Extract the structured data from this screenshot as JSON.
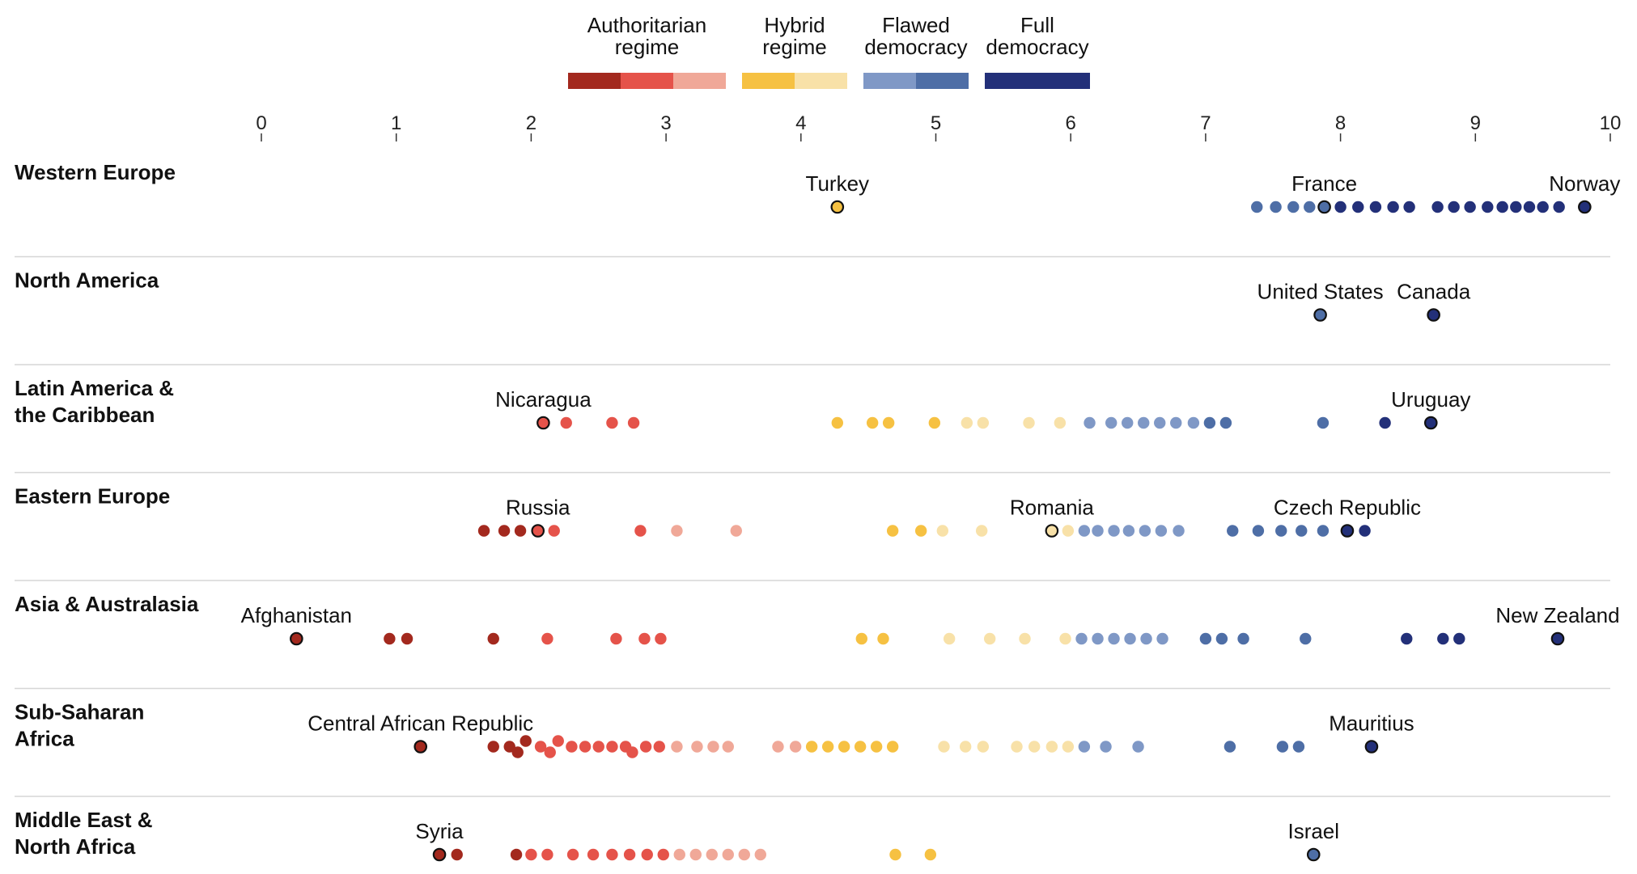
{
  "chart_data": {
    "type": "scatter",
    "title": "",
    "xlabel": "",
    "ylabel": "",
    "xlim": [
      0,
      10
    ],
    "x_ticks": [
      "0",
      "1",
      "2",
      "3",
      "4",
      "5",
      "6",
      "7",
      "8",
      "9",
      "10"
    ],
    "grid": false,
    "legend_position": "top",
    "legend": [
      {
        "label_lines": [
          "Authoritarian",
          "regime"
        ],
        "colors": [
          "#a3291e",
          "#e5534a",
          "#f0a898"
        ]
      },
      {
        "label_lines": [
          "Hybrid",
          "regime"
        ],
        "colors": [
          "#f6c142",
          "#f8e1a8"
        ]
      },
      {
        "label_lines": [
          "Flawed",
          "democracy"
        ],
        "colors": [
          "#7f98c6",
          "#4e6ea6"
        ]
      },
      {
        "label_lines": [
          "Full",
          "democracy"
        ],
        "colors": [
          "#233079"
        ]
      }
    ],
    "colors": {
      "authoritarian_dark": "#a3291e",
      "authoritarian_mid": "#e5534a",
      "authoritarian_light": "#f0a898",
      "hybrid_dark": "#f6c142",
      "hybrid_light": "#f8e1a8",
      "flawed_light": "#7f98c6",
      "flawed_dark": "#4e6ea6",
      "full": "#233079"
    },
    "series": [
      {
        "name": "Western Europe",
        "label_lines": [
          "Western Europe"
        ],
        "scores": [
          4.27,
          7.38,
          7.52,
          7.65,
          7.77,
          7.88,
          8.0,
          8.13,
          8.26,
          8.39,
          8.51,
          8.72,
          8.84,
          8.96,
          9.09,
          9.2,
          9.3,
          9.4,
          9.5,
          9.62,
          9.81
        ],
        "highlights": [
          {
            "country": "Turkey",
            "score": 4.27
          },
          {
            "country": "France",
            "score": 7.88
          },
          {
            "country": "Norway",
            "score": 9.81
          }
        ]
      },
      {
        "name": "North America",
        "label_lines": [
          "North America"
        ],
        "scores": [
          7.85,
          8.69
        ],
        "highlights": [
          {
            "country": "United States",
            "score": 7.85
          },
          {
            "country": "Canada",
            "score": 8.69
          }
        ]
      },
      {
        "name": "Latin America & the Caribbean",
        "label_lines": [
          "Latin America &",
          "the Caribbean"
        ],
        "scores": [
          2.09,
          2.26,
          2.6,
          2.76,
          4.27,
          4.53,
          4.65,
          4.99,
          5.23,
          5.35,
          5.69,
          5.92,
          6.14,
          6.3,
          6.42,
          6.54,
          6.66,
          6.78,
          6.91,
          7.03,
          7.15,
          7.87,
          8.33,
          8.67
        ],
        "highlights": [
          {
            "country": "Nicaragua",
            "score": 2.09
          },
          {
            "country": "Uruguay",
            "score": 8.67
          }
        ]
      },
      {
        "name": "Eastern Europe",
        "label_lines": [
          "Eastern Europe"
        ],
        "scores": [
          1.65,
          1.8,
          1.92,
          2.05,
          2.17,
          2.81,
          3.08,
          3.52,
          4.68,
          4.89,
          5.05,
          5.34,
          5.86,
          5.98,
          6.1,
          6.2,
          6.32,
          6.43,
          6.55,
          6.67,
          6.8,
          7.2,
          7.39,
          7.56,
          7.71,
          7.87,
          8.05,
          8.18
        ],
        "highlights": [
          {
            "country": "Russia",
            "score": 2.05
          },
          {
            "country": "Romania",
            "score": 5.86
          },
          {
            "country": "Czech Republic",
            "score": 8.05
          }
        ]
      },
      {
        "name": "Asia & Australasia",
        "label_lines": [
          "Asia & Australasia"
        ],
        "scores": [
          0.26,
          0.95,
          1.08,
          1.72,
          2.12,
          2.63,
          2.84,
          2.96,
          4.45,
          4.61,
          5.1,
          5.4,
          5.66,
          5.96,
          6.08,
          6.2,
          6.32,
          6.44,
          6.56,
          6.68,
          7.0,
          7.12,
          7.28,
          7.74,
          8.49,
          8.76,
          8.88,
          9.61
        ],
        "highlights": [
          {
            "country": "Afghanistan",
            "score": 0.26
          },
          {
            "country": "New Zealand",
            "score": 9.61
          }
        ]
      },
      {
        "name": "Sub-Saharan Africa",
        "label_lines": [
          "Sub-Saharan",
          "Africa"
        ],
        "scores": [
          1.18,
          1.72,
          1.84,
          1.9,
          1.96,
          2.07,
          2.14,
          2.2,
          2.3,
          2.4,
          2.5,
          2.6,
          2.7,
          2.75,
          2.85,
          2.95,
          3.08,
          3.23,
          3.35,
          3.46,
          3.83,
          3.96,
          4.08,
          4.2,
          4.32,
          4.44,
          4.56,
          4.68,
          5.06,
          5.22,
          5.35,
          5.6,
          5.73,
          5.86,
          5.98,
          6.1,
          6.26,
          6.5,
          7.18,
          7.57,
          7.69,
          8.23
        ],
        "highlights": [
          {
            "country": "Central African Republic",
            "score": 1.18
          },
          {
            "country": "Mauritius",
            "score": 8.23
          }
        ]
      },
      {
        "name": "Middle East & North Africa",
        "label_lines": [
          "Middle East &",
          "North Africa"
        ],
        "scores": [
          1.32,
          1.45,
          1.89,
          2.0,
          2.12,
          2.31,
          2.46,
          2.6,
          2.73,
          2.86,
          2.98,
          3.1,
          3.22,
          3.34,
          3.46,
          3.58,
          3.7,
          4.7,
          4.96,
          7.8
        ],
        "highlights": [
          {
            "country": "Syria",
            "score": 1.32
          },
          {
            "country": "Israel",
            "score": 7.8
          }
        ]
      }
    ]
  }
}
